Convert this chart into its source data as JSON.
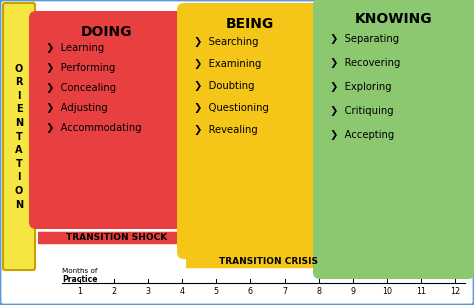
{
  "border_color": "#5b9bd5",
  "left_bar_color": "#f5e642",
  "left_bar_border": "#c8a000",
  "orientation_text": "O\nR\nI\nE\nN\nT\nA\nT\nI\nO\nN",
  "doing_box_color": "#e84040",
  "doing_title": "DOING",
  "doing_items": [
    "Learning",
    "Performing",
    "Concealing",
    "Adjusting",
    "Accommodating"
  ],
  "being_box_color": "#f5c518",
  "being_title": "BEING",
  "being_items": [
    "Searching",
    "Examining",
    "Doubting",
    "Questioning",
    "Revealing"
  ],
  "knowing_box_color": "#8cc870",
  "knowing_title": "KNOWING",
  "knowing_items": [
    "Separating",
    "Recovering",
    "Exploring",
    "Critiquing",
    "Accepting"
  ],
  "arrow1_color": "#e84040",
  "arrow1_text": "TRANSITION SHOCK",
  "arrow2_color": "#f5c518",
  "arrow2_text": "TRANSITION CRISIS",
  "bottom_label1": "Months of",
  "bottom_label2": "Practice",
  "tick_labels": [
    "1",
    "2",
    "3",
    "4",
    "5",
    "6",
    "7",
    "8",
    "9",
    "10",
    "11",
    "12"
  ],
  "main_bg": "#d9d9d9",
  "white_bg": "#ffffff",
  "bullet": "❯"
}
